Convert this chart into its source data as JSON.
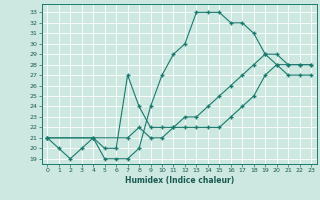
{
  "xlabel": "Humidex (Indice chaleur)",
  "bg_color": "#cce8e0",
  "grid_color": "#b0d8d0",
  "line_color": "#1a7a6e",
  "xlim": [
    -0.5,
    23.5
  ],
  "ylim": [
    18.5,
    33.8
  ],
  "xticks": [
    0,
    1,
    2,
    3,
    4,
    5,
    6,
    7,
    8,
    9,
    10,
    11,
    12,
    13,
    14,
    15,
    16,
    17,
    18,
    19,
    20,
    21,
    22,
    23
  ],
  "yticks": [
    19,
    20,
    21,
    22,
    23,
    24,
    25,
    26,
    27,
    28,
    29,
    30,
    31,
    32,
    33
  ],
  "line1_x": [
    0,
    1,
    2,
    3,
    4,
    5,
    6,
    7,
    8,
    9,
    10,
    11,
    12,
    13,
    14,
    15,
    16,
    17,
    18,
    19,
    20,
    21,
    22,
    23
  ],
  "line1_y": [
    21,
    20,
    19,
    20,
    21,
    19,
    19,
    19,
    20,
    24,
    27,
    29,
    30,
    33,
    33,
    33,
    32,
    32,
    31,
    29,
    28,
    27,
    27,
    27
  ],
  "line2_x": [
    0,
    4,
    5,
    6,
    7,
    8,
    9,
    10,
    11,
    12,
    13,
    14,
    15,
    16,
    17,
    18,
    19,
    20,
    21,
    22,
    23
  ],
  "line2_y": [
    21,
    21,
    20,
    20,
    27,
    24,
    22,
    22,
    22,
    23,
    23,
    24,
    25,
    26,
    27,
    28,
    29,
    29,
    28,
    28,
    28
  ],
  "line3_x": [
    0,
    7,
    8,
    9,
    10,
    11,
    12,
    13,
    14,
    15,
    16,
    17,
    18,
    19,
    20,
    21,
    22,
    23
  ],
  "line3_y": [
    21,
    21,
    22,
    21,
    21,
    22,
    22,
    22,
    22,
    22,
    23,
    24,
    25,
    27,
    28,
    28,
    28,
    28
  ]
}
